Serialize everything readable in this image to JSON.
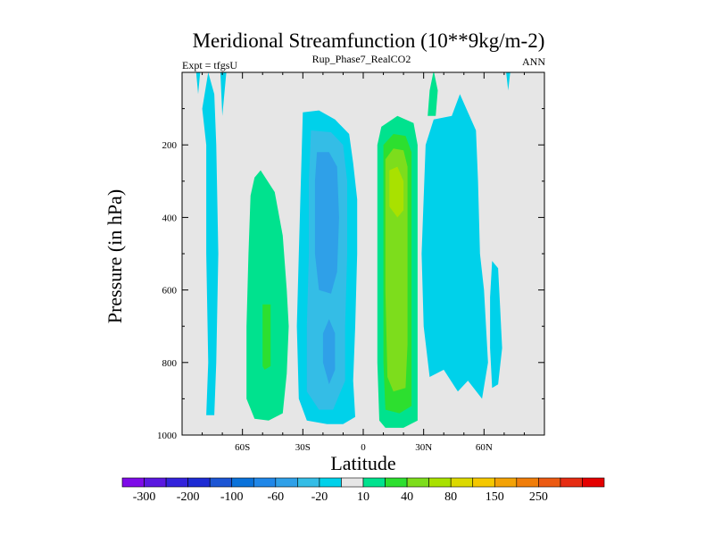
{
  "chart_data": {
    "type": "heatmap",
    "title": "Meridional Streamfunction (10**9kg/m-2)",
    "left_label": "Expt = tfgsU",
    "center_label": "Rup_Phase7_RealCO2",
    "right_label": "ANN",
    "xlabel": "Latitude",
    "ylabel": "Pressure (in hPa)",
    "x_range": [
      -90,
      90
    ],
    "y_range": [
      0,
      1000
    ],
    "y_inverted": true,
    "x_ticks": [
      {
        "value": -60,
        "label": "60S"
      },
      {
        "value": -30,
        "label": "30S"
      },
      {
        "value": 0,
        "label": "0"
      },
      {
        "value": 30,
        "label": "30N"
      },
      {
        "value": 60,
        "label": "60N"
      }
    ],
    "y_ticks": [
      {
        "value": 200,
        "label": "200"
      },
      {
        "value": 400,
        "label": "400"
      },
      {
        "value": 600,
        "label": "600"
      },
      {
        "value": 800,
        "label": "800"
      },
      {
        "value": 1000,
        "label": "1000"
      }
    ],
    "background_color": "#e6e6e6",
    "colorbar": {
      "colors": [
        "#7e0be8",
        "#5a18e0",
        "#3323dc",
        "#1d2bd4",
        "#1c55d4",
        "#0a72da",
        "#2087e8",
        "#2fa0e8",
        "#34bde6",
        "#00d1ea",
        "#e6e6e6",
        "#00e28e",
        "#2ddf2f",
        "#7ddd1c",
        "#a9e100",
        "#dcd900",
        "#f5c800",
        "#f3a206",
        "#f07d09",
        "#ec5a12",
        "#e62c12",
        "#e40000"
      ],
      "labels": [
        "-300",
        "-200",
        "-100",
        "-60",
        "-20",
        "10",
        "40",
        "80",
        "150",
        "250"
      ]
    },
    "regions": [
      {
        "name": "antarctic-cell",
        "sign": "negative",
        "level": 1,
        "points": [
          [
            -80,
            100
          ],
          [
            -78,
            200
          ],
          [
            -78,
            500
          ],
          [
            -77,
            800
          ],
          [
            -78,
            945
          ],
          [
            -74,
            945
          ],
          [
            -73,
            800
          ],
          [
            -72,
            500
          ],
          [
            -73,
            200
          ],
          [
            -74,
            60
          ],
          [
            -77,
            0
          ]
        ]
      },
      {
        "name": "southern-ferrel-cell",
        "sign": "positive",
        "level": 1,
        "points": [
          [
            -54,
            290
          ],
          [
            -51,
            270
          ],
          [
            -44,
            330
          ],
          [
            -40,
            450
          ],
          [
            -38,
            600
          ],
          [
            -37,
            700
          ],
          [
            -38,
            830
          ],
          [
            -40,
            940
          ],
          [
            -47,
            960
          ],
          [
            -54,
            955
          ],
          [
            -58,
            900
          ],
          [
            -58,
            700
          ],
          [
            -57,
            500
          ],
          [
            -56,
            340
          ]
        ]
      },
      {
        "name": "southern-ferrel-core",
        "sign": "positive",
        "level": 2,
        "points": [
          [
            -50,
            640
          ],
          [
            -46,
            640
          ],
          [
            -46,
            810
          ],
          [
            -49,
            820
          ],
          [
            -50,
            810
          ]
        ]
      },
      {
        "name": "southern-hadley-cell",
        "sign": "negative",
        "level": 1,
        "points": [
          [
            -30,
            110
          ],
          [
            -22,
            105
          ],
          [
            -14,
            130
          ],
          [
            -7,
            170
          ],
          [
            -5,
            250
          ],
          [
            -3,
            350
          ],
          [
            -3,
            500
          ],
          [
            -4,
            700
          ],
          [
            -5,
            850
          ],
          [
            -4,
            950
          ],
          [
            -10,
            970
          ],
          [
            -18,
            970
          ],
          [
            -28,
            960
          ],
          [
            -32,
            900
          ],
          [
            -33,
            700
          ],
          [
            -32,
            500
          ],
          [
            -31,
            300
          ]
        ]
      },
      {
        "name": "southern-hadley-inner",
        "sign": "negative",
        "level": 2,
        "points": [
          [
            -26,
            160
          ],
          [
            -16,
            165
          ],
          [
            -10,
            200
          ],
          [
            -8,
            300
          ],
          [
            -8,
            500
          ],
          [
            -9,
            700
          ],
          [
            -9,
            850
          ],
          [
            -15,
            930
          ],
          [
            -22,
            930
          ],
          [
            -28,
            880
          ],
          [
            -28,
            700
          ],
          [
            -27,
            500
          ],
          [
            -27,
            300
          ]
        ]
      },
      {
        "name": "southern-hadley-core",
        "sign": "negative",
        "level": 3,
        "points": [
          [
            -23,
            220
          ],
          [
            -17,
            220
          ],
          [
            -13,
            260
          ],
          [
            -12,
            400
          ],
          [
            -13,
            550
          ],
          [
            -16,
            610
          ],
          [
            -22,
            600
          ],
          [
            -24,
            500
          ],
          [
            -24,
            300
          ]
        ]
      },
      {
        "name": "southern-hadley-low",
        "sign": "negative",
        "level": 3,
        "points": [
          [
            -17,
            680
          ],
          [
            -14,
            720
          ],
          [
            -14,
            820
          ],
          [
            -17,
            860
          ],
          [
            -20,
            800
          ],
          [
            -20,
            720
          ]
        ]
      },
      {
        "name": "northern-hadley-cell",
        "sign": "positive",
        "level": 1,
        "points": [
          [
            9,
            150
          ],
          [
            17,
            120
          ],
          [
            25,
            140
          ],
          [
            27,
            200
          ],
          [
            27,
            400
          ],
          [
            27,
            600
          ],
          [
            27,
            800
          ],
          [
            27,
            960
          ],
          [
            20,
            980
          ],
          [
            11,
            980
          ],
          [
            8,
            960
          ],
          [
            7,
            800
          ],
          [
            7,
            400
          ],
          [
            7,
            200
          ]
        ]
      },
      {
        "name": "northern-hadley-inner",
        "sign": "positive",
        "level": 2,
        "points": [
          [
            10,
            200
          ],
          [
            15,
            170
          ],
          [
            21,
            175
          ],
          [
            24,
            220
          ],
          [
            24,
            500
          ],
          [
            24,
            800
          ],
          [
            24,
            920
          ],
          [
            18,
            940
          ],
          [
            11,
            930
          ],
          [
            10,
            800
          ],
          [
            10,
            400
          ]
        ]
      },
      {
        "name": "northern-hadley-core",
        "sign": "positive",
        "level": 3,
        "points": [
          [
            11,
            240
          ],
          [
            15,
            210
          ],
          [
            20,
            215
          ],
          [
            22,
            260
          ],
          [
            22,
            500
          ],
          [
            22,
            750
          ],
          [
            21,
            870
          ],
          [
            15,
            880
          ],
          [
            12,
            840
          ],
          [
            11,
            600
          ]
        ]
      },
      {
        "name": "northern-hadley-peak",
        "sign": "positive",
        "level": 4,
        "points": [
          [
            13,
            270
          ],
          [
            17,
            260
          ],
          [
            20,
            300
          ],
          [
            20,
            380
          ],
          [
            17,
            400
          ],
          [
            13,
            370
          ]
        ]
      },
      {
        "name": "northern-ferrel-cell",
        "sign": "negative",
        "level": 1,
        "points": [
          [
            31,
            200
          ],
          [
            35,
            130
          ],
          [
            44,
            120
          ],
          [
            48,
            60
          ],
          [
            52,
            110
          ],
          [
            56,
            160
          ],
          [
            57,
            300
          ],
          [
            58,
            500
          ],
          [
            60,
            600
          ],
          [
            62,
            800
          ],
          [
            59,
            900
          ],
          [
            52,
            850
          ],
          [
            47,
            880
          ],
          [
            40,
            820
          ],
          [
            33,
            840
          ],
          [
            30,
            700
          ],
          [
            29,
            500
          ]
        ]
      },
      {
        "name": "polar-cell",
        "sign": "negative",
        "level": 1,
        "points": [
          [
            64,
            520
          ],
          [
            67,
            540
          ],
          [
            68,
            650
          ],
          [
            69,
            760
          ],
          [
            67,
            860
          ],
          [
            64,
            870
          ],
          [
            63,
            760
          ],
          [
            63,
            620
          ]
        ]
      },
      {
        "name": "upper-positive-band",
        "sign": "positive",
        "level": 1,
        "points": [
          [
            32,
            120
          ],
          [
            33,
            50
          ],
          [
            35,
            -5
          ],
          [
            37,
            50
          ],
          [
            36,
            120
          ]
        ]
      },
      {
        "name": "upper-negative-sliver-a",
        "sign": "negative",
        "level": 1,
        "points": [
          [
            -83,
            0
          ],
          [
            -82,
            60
          ],
          [
            -81,
            0
          ]
        ]
      },
      {
        "name": "upper-negative-sliver-b",
        "sign": "negative",
        "level": 1,
        "points": [
          [
            -71,
            0
          ],
          [
            -70,
            120
          ],
          [
            -68,
            0
          ]
        ]
      },
      {
        "name": "upper-negative-sliver-c",
        "sign": "negative",
        "level": 1,
        "points": [
          [
            71,
            0
          ],
          [
            72,
            50
          ],
          [
            73,
            0
          ]
        ]
      }
    ]
  }
}
